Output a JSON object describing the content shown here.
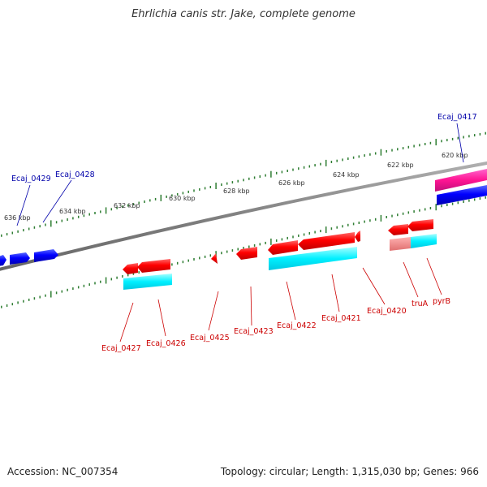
{
  "title": "Ehrlichia canis str. Jake, complete genome",
  "footer": {
    "accession": "Accession: NC_007354",
    "topology": "Topology: circular; Length: 1,315,030 bp; Genes: 966"
  },
  "colors": {
    "forward_gene": "#0000ff",
    "reverse_gene": "#ff0000",
    "reverse_cds": "#00ffff",
    "forward_rna": "#ff1493",
    "backbone": "#808080",
    "ticks": "#2e7d32",
    "forward_label": "#0000aa",
    "reverse_label": "#cc0000"
  },
  "scale_labels": [
    "620 kbp",
    "622 kbp",
    "624 kbp",
    "626 kbp",
    "628 kbp",
    "630 kbp",
    "632 kbp",
    "634 kbp",
    "636 kbp"
  ],
  "forward_labels": [
    "Ecaj_0417",
    "Ecaj_0428",
    "Ecaj_0429"
  ],
  "reverse_labels": [
    "pyrB",
    "truA",
    "Ecaj_0420",
    "Ecaj_0421",
    "Ecaj_0422",
    "Ecaj_0423",
    "Ecaj_0425",
    "Ecaj_0426",
    "Ecaj_0427"
  ]
}
